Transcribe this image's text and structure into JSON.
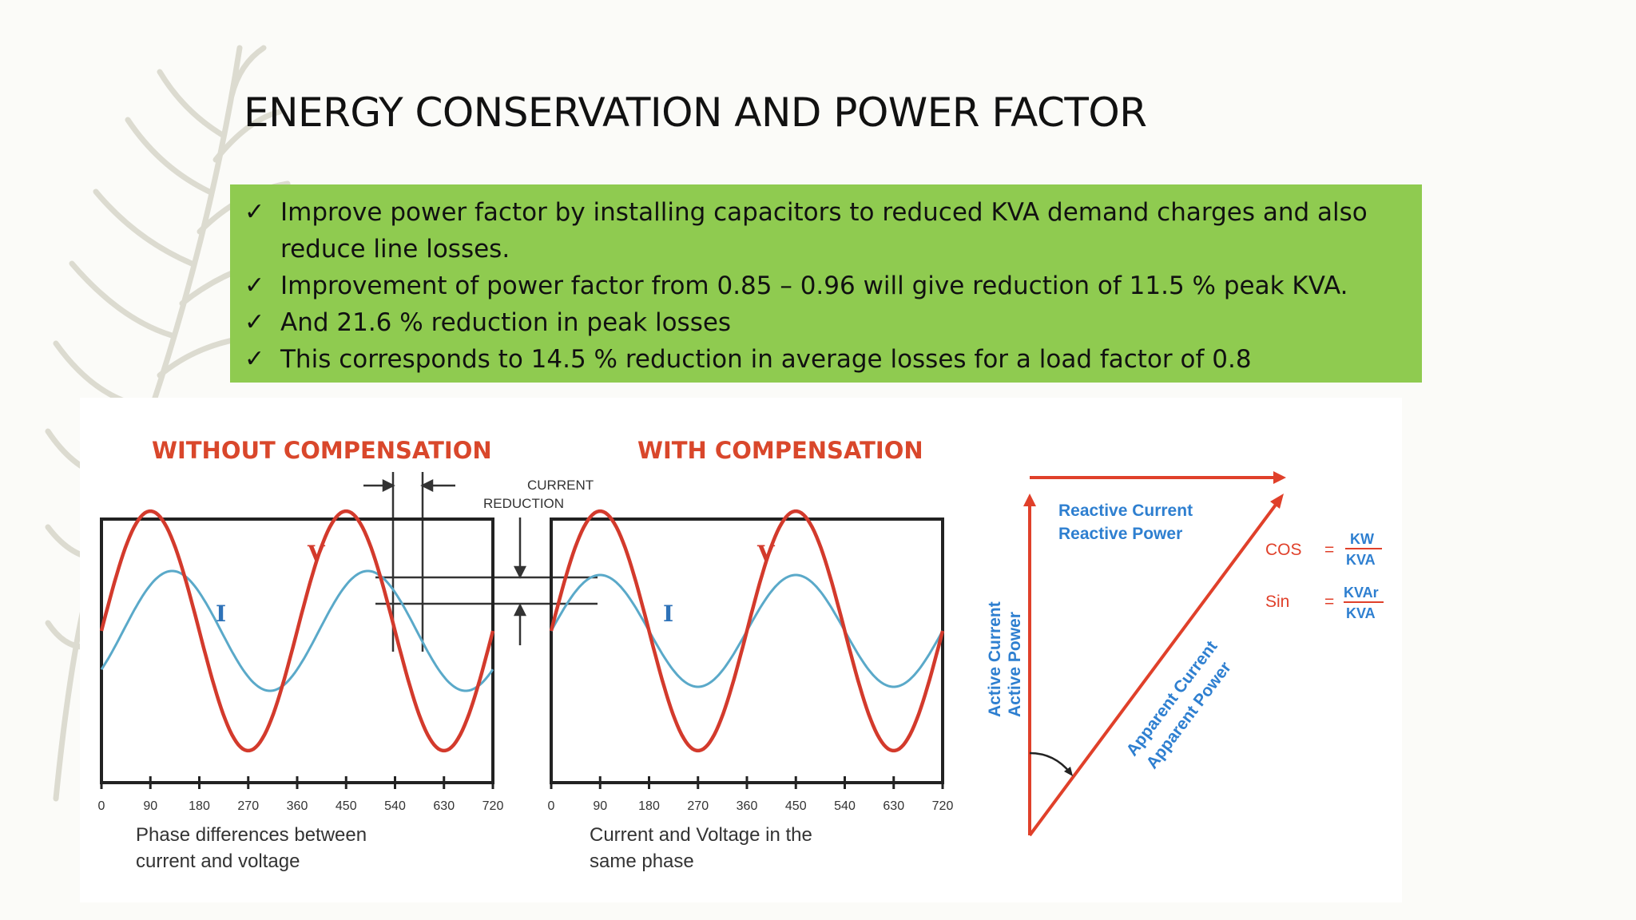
{
  "slide": {
    "title": "ENERGY CONSERVATION AND POWER FACTOR",
    "bullets": [
      "Improve power factor by installing capacitors to reduced KVA demand charges and also reduce line losses.",
      "Improvement of power factor from 0.85 – 0.96 will give reduction of 11.5 % peak KVA.",
      "And 21.6 % reduction in peak losses",
      "This corresponds to 14.5 % reduction in average losses for a load factor of 0.8"
    ],
    "check_glyph": "✓",
    "box_color": "#8fcb50"
  },
  "figure": {
    "left_panel": {
      "heading": "WITHOUT COMPENSATION",
      "voltage_label": "V",
      "current_label": "I",
      "caption_line1": "Phase differences between",
      "caption_line2": "current and voltage"
    },
    "right_panel": {
      "heading": "WITH COMPENSATION",
      "voltage_label": "V",
      "current_label": "I",
      "caption_line1": "Current and Voltage in the",
      "caption_line2": "same phase"
    },
    "reduction_label_line1": "CURRENT",
    "reduction_label_line2": "REDUCTION",
    "x_ticks": [
      "0",
      "90",
      "180",
      "270",
      "360",
      "450",
      "540",
      "630",
      "720"
    ],
    "triangle": {
      "reactive_current": "Reactive Current",
      "reactive_power": "Reactive Power",
      "active_current": "Active Current",
      "active_power": "Active Power",
      "apparent_current": "Apparent Current",
      "apparent_power": "Apparent Power",
      "cos_label": "COS",
      "cos_num": "KW",
      "cos_den": "KVA",
      "sin_label": "Sin",
      "sin_num": "KVAr",
      "sin_den": "KVA",
      "equals": "="
    },
    "colors": {
      "voltage": "#d33a2c",
      "current": "#5aa9c9",
      "heading": "#d9472b",
      "triangle_line": "#e0402a",
      "triangle_text": "#2e7fd0"
    }
  }
}
